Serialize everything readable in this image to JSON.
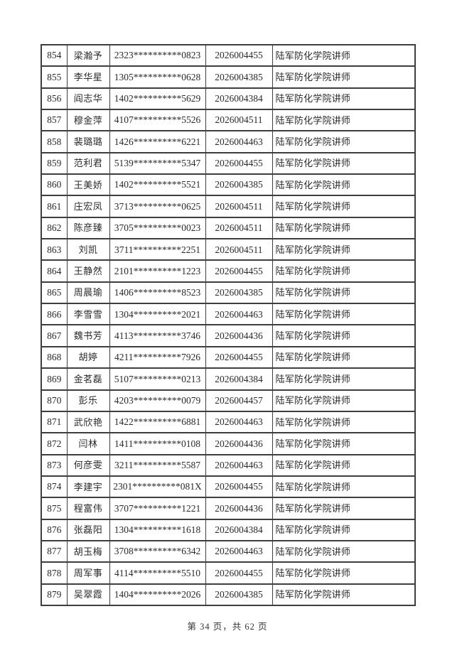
{
  "colors": {
    "border": "#3e3e3e",
    "text": "#2a2a2a",
    "background": "#ffffff"
  },
  "table": {
    "rows": [
      {
        "seq": "854",
        "name": "梁瀚予",
        "id": "2323**********0823",
        "code": "2026004455",
        "title": "陆军防化学院讲师"
      },
      {
        "seq": "855",
        "name": "李华星",
        "id": "1305**********0628",
        "code": "2026004385",
        "title": "陆军防化学院讲师"
      },
      {
        "seq": "856",
        "name": "阎志华",
        "id": "1402**********5629",
        "code": "2026004384",
        "title": "陆军防化学院讲师"
      },
      {
        "seq": "857",
        "name": "穆金萍",
        "id": "4107**********5526",
        "code": "2026004511",
        "title": "陆军防化学院讲师"
      },
      {
        "seq": "858",
        "name": "裴璐璐",
        "id": "1426**********6221",
        "code": "2026004463",
        "title": "陆军防化学院讲师"
      },
      {
        "seq": "859",
        "name": "范利君",
        "id": "5139**********5347",
        "code": "2026004455",
        "title": "陆军防化学院讲师"
      },
      {
        "seq": "860",
        "name": "王美娇",
        "id": "1402**********5521",
        "code": "2026004385",
        "title": "陆军防化学院讲师"
      },
      {
        "seq": "861",
        "name": "庄宏凤",
        "id": "3713**********0625",
        "code": "2026004511",
        "title": "陆军防化学院讲师"
      },
      {
        "seq": "862",
        "name": "陈彦臻",
        "id": "3705**********0023",
        "code": "2026004511",
        "title": "陆军防化学院讲师"
      },
      {
        "seq": "863",
        "name": "刘凯",
        "id": "3711**********2251",
        "code": "2026004511",
        "title": "陆军防化学院讲师"
      },
      {
        "seq": "864",
        "name": "王静然",
        "id": "2101**********1223",
        "code": "2026004455",
        "title": "陆军防化学院讲师"
      },
      {
        "seq": "865",
        "name": "周晨瑜",
        "id": "1406**********8523",
        "code": "2026004385",
        "title": "陆军防化学院讲师"
      },
      {
        "seq": "866",
        "name": "李雪雪",
        "id": "1304**********2021",
        "code": "2026004463",
        "title": "陆军防化学院讲师"
      },
      {
        "seq": "867",
        "name": "魏书芳",
        "id": "4113**********3746",
        "code": "2026004436",
        "title": "陆军防化学院讲师"
      },
      {
        "seq": "868",
        "name": "胡婷",
        "id": "4211**********7926",
        "code": "2026004455",
        "title": "陆军防化学院讲师"
      },
      {
        "seq": "869",
        "name": "金茗磊",
        "id": "5107**********0213",
        "code": "2026004384",
        "title": "陆军防化学院讲师"
      },
      {
        "seq": "870",
        "name": "彭乐",
        "id": "4203**********0079",
        "code": "2026004457",
        "title": "陆军防化学院讲师"
      },
      {
        "seq": "871",
        "name": "武欣艳",
        "id": "1422**********6881",
        "code": "2026004463",
        "title": "陆军防化学院讲师"
      },
      {
        "seq": "872",
        "name": "闫林",
        "id": "1411**********0108",
        "code": "2026004436",
        "title": "陆军防化学院讲师"
      },
      {
        "seq": "873",
        "name": "何彦雯",
        "id": "3211**********5587",
        "code": "2026004463",
        "title": "陆军防化学院讲师"
      },
      {
        "seq": "874",
        "name": "李建宇",
        "id": "2301**********081X",
        "code": "2026004455",
        "title": "陆军防化学院讲师"
      },
      {
        "seq": "875",
        "name": "程富伟",
        "id": "3707**********1221",
        "code": "2026004436",
        "title": "陆军防化学院讲师"
      },
      {
        "seq": "876",
        "name": "张磊阳",
        "id": "1304**********1618",
        "code": "2026004384",
        "title": "陆军防化学院讲师"
      },
      {
        "seq": "877",
        "name": "胡玉梅",
        "id": "3708**********6342",
        "code": "2026004463",
        "title": "陆军防化学院讲师"
      },
      {
        "seq": "878",
        "name": "周军事",
        "id": "4114**********5510",
        "code": "2026004455",
        "title": "陆军防化学院讲师"
      },
      {
        "seq": "879",
        "name": "吴翠霞",
        "id": "1404**********2026",
        "code": "2026004385",
        "title": "陆军防化学院讲师"
      }
    ]
  },
  "footer": {
    "page_info": "第 34 页，共 62 页"
  }
}
